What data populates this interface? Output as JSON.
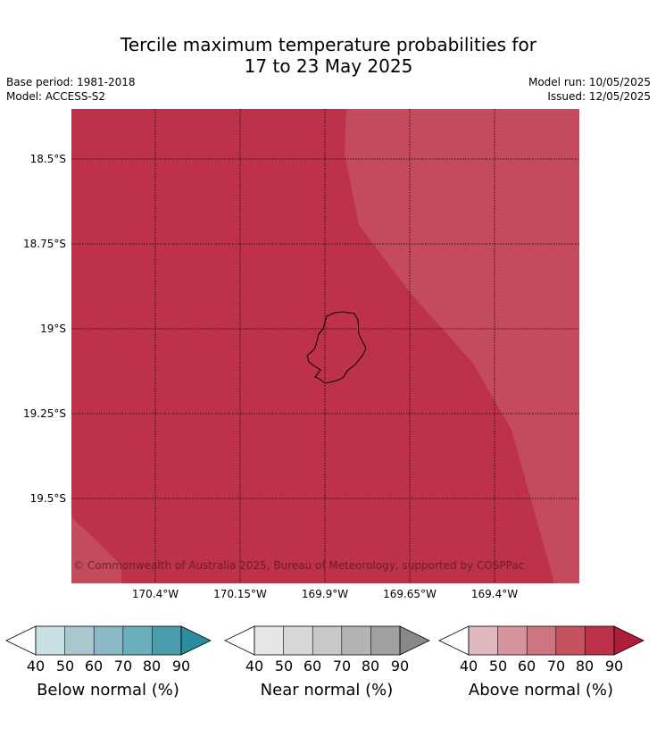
{
  "title_line1": "Tercile maximum temperature probabilities for",
  "title_line2": "17 to 23 May 2025",
  "meta": {
    "base_period": "Base period: 1981-2018",
    "model": "Model: ACCESS-S2",
    "model_run": "Model run: 10/05/2025",
    "issued": "Issued: 12/05/2025"
  },
  "map": {
    "lat_labels": [
      "18.5°S",
      "18.75°S",
      "19°S",
      "19.25°S",
      "19.5°S"
    ],
    "lon_labels": [
      "170.4°W",
      "170.15°W",
      "169.9°W",
      "169.65°W",
      "169.4°W"
    ],
    "fill_main": "#bd3249",
    "fill_light": "#c34b5c",
    "copyright": "© Commonwealth of Australia 2025, Bureau of Meteorology, supported by COSPPac"
  },
  "colorbars": [
    {
      "label": "Below normal (%)",
      "ticks": [
        "40",
        "50",
        "60",
        "70",
        "80",
        "90"
      ],
      "colors": [
        "#c8e0e6",
        "#a9c7cc",
        "#8ab8c4",
        "#6baebc",
        "#4b9dae",
        "#2b8c9e"
      ]
    },
    {
      "label": "Near normal (%)",
      "ticks": [
        "40",
        "50",
        "60",
        "70",
        "80",
        "90"
      ],
      "colors": [
        "#e6e6e6",
        "#d8d8d8",
        "#c8c8c8",
        "#b4b4b4",
        "#a0a0a0",
        "#888888"
      ]
    },
    {
      "label": "Above normal (%)",
      "ticks": [
        "40",
        "50",
        "60",
        "70",
        "80",
        "90"
      ],
      "colors": [
        "#e2b8bf",
        "#d6959d",
        "#cc7580",
        "#c4525f",
        "#bd3249",
        "#b01d3a"
      ]
    }
  ]
}
